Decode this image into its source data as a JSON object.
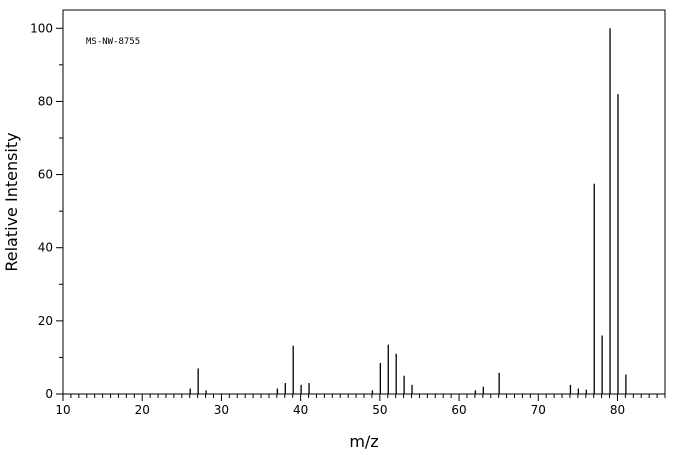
{
  "chart_data": {
    "type": "bar",
    "style": "stick-spectrum",
    "annotation": "MS-NW-8755",
    "xlabel": "m/z",
    "ylabel": "Relative Intensity",
    "xlim": [
      10,
      86
    ],
    "ylim": [
      0,
      105
    ],
    "x_major_ticks": [
      10,
      20,
      30,
      40,
      50,
      60,
      70,
      80
    ],
    "y_major_ticks": [
      0,
      20,
      40,
      60,
      80,
      100
    ],
    "grid": false,
    "peaks": [
      {
        "mz": 26,
        "intensity": 1.5
      },
      {
        "mz": 27,
        "intensity": 7.0
      },
      {
        "mz": 28,
        "intensity": 1.0
      },
      {
        "mz": 37,
        "intensity": 1.5
      },
      {
        "mz": 38,
        "intensity": 3.0
      },
      {
        "mz": 39,
        "intensity": 13.2
      },
      {
        "mz": 40,
        "intensity": 2.5
      },
      {
        "mz": 41,
        "intensity": 3.0
      },
      {
        "mz": 49,
        "intensity": 1.0
      },
      {
        "mz": 50,
        "intensity": 8.5
      },
      {
        "mz": 51,
        "intensity": 13.5
      },
      {
        "mz": 52,
        "intensity": 11.0
      },
      {
        "mz": 53,
        "intensity": 5.0
      },
      {
        "mz": 54,
        "intensity": 2.5
      },
      {
        "mz": 62,
        "intensity": 1.0
      },
      {
        "mz": 63,
        "intensity": 2.0
      },
      {
        "mz": 65,
        "intensity": 5.8
      },
      {
        "mz": 74,
        "intensity": 2.5
      },
      {
        "mz": 75,
        "intensity": 1.5
      },
      {
        "mz": 76,
        "intensity": 1.2
      },
      {
        "mz": 77,
        "intensity": 57.5
      },
      {
        "mz": 78,
        "intensity": 16.0
      },
      {
        "mz": 79,
        "intensity": 100
      },
      {
        "mz": 80,
        "intensity": 82.0
      },
      {
        "mz": 81,
        "intensity": 5.3
      }
    ]
  }
}
